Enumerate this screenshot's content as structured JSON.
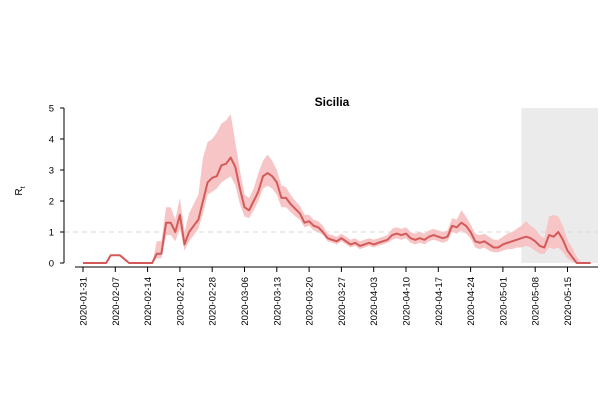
{
  "chart_data": {
    "type": "line",
    "title": "Sicilia",
    "ylabel": "R",
    "ylabel_subscript": "t",
    "xlabel": "",
    "ylim": [
      0,
      5
    ],
    "yticks": [
      0,
      1,
      2,
      3,
      4,
      5
    ],
    "xlim": [
      "2020-01-31",
      "2020-05-27"
    ],
    "xtick_labels": [
      "2020-01-31",
      "2020-02-07",
      "2020-02-14",
      "2020-02-21",
      "2020-02-28",
      "2020-03-06",
      "2020-03-13",
      "2020-03-20",
      "2020-03-27",
      "2020-04-03",
      "2020-04-10",
      "2020-04-17",
      "2020-04-24",
      "2020-05-01",
      "2020-05-08",
      "2020-05-15"
    ],
    "reference_line": 1,
    "shaded_region": [
      "2020-05-05",
      "2020-05-27"
    ],
    "colors": {
      "line": "#d45a5a",
      "band": "#f7c5c5",
      "shade": "#ebebeb",
      "reference": "#d8d8d8"
    },
    "series": [
      {
        "x": [
          "2020-01-31",
          "2020-02-02",
          "2020-02-04",
          "2020-02-05",
          "2020-02-06",
          "2020-02-07",
          "2020-02-08",
          "2020-02-10",
          "2020-02-12",
          "2020-02-14",
          "2020-02-15",
          "2020-02-16",
          "2020-02-17",
          "2020-02-18",
          "2020-02-19",
          "2020-02-20",
          "2020-02-21",
          "2020-02-22",
          "2020-02-23",
          "2020-02-24",
          "2020-02-25",
          "2020-02-26",
          "2020-02-27",
          "2020-02-28",
          "2020-02-29",
          "2020-03-01",
          "2020-03-02",
          "2020-03-03",
          "2020-03-04",
          "2020-03-05",
          "2020-03-06",
          "2020-03-07",
          "2020-03-08",
          "2020-03-09",
          "2020-03-10",
          "2020-03-11",
          "2020-03-12",
          "2020-03-13",
          "2020-03-14",
          "2020-03-15",
          "2020-03-16",
          "2020-03-17",
          "2020-03-18",
          "2020-03-19",
          "2020-03-20",
          "2020-03-21",
          "2020-03-22",
          "2020-03-23",
          "2020-03-24",
          "2020-03-25",
          "2020-03-26",
          "2020-03-27",
          "2020-03-28",
          "2020-03-29",
          "2020-03-30",
          "2020-03-31",
          "2020-04-01",
          "2020-04-02",
          "2020-04-03",
          "2020-04-04",
          "2020-04-05",
          "2020-04-06",
          "2020-04-07",
          "2020-04-08",
          "2020-04-09",
          "2020-04-10",
          "2020-04-11",
          "2020-04-12",
          "2020-04-13",
          "2020-04-14",
          "2020-04-15",
          "2020-04-16",
          "2020-04-17",
          "2020-04-18",
          "2020-04-19",
          "2020-04-20",
          "2020-04-21",
          "2020-04-22",
          "2020-04-23",
          "2020-04-24",
          "2020-04-25",
          "2020-04-26",
          "2020-04-27",
          "2020-04-28",
          "2020-04-29",
          "2020-04-30",
          "2020-05-01",
          "2020-05-02",
          "2020-05-03",
          "2020-05-04",
          "2020-05-05",
          "2020-05-06",
          "2020-05-07",
          "2020-05-08",
          "2020-05-09",
          "2020-05-10",
          "2020-05-11",
          "2020-05-12",
          "2020-05-13",
          "2020-05-14",
          "2020-05-15",
          "2020-05-16",
          "2020-05-17",
          "2020-05-18",
          "2020-05-20"
        ],
        "values": [
          0,
          0,
          0,
          0,
          0.25,
          0.25,
          0.25,
          0,
          0,
          0,
          0,
          0.3,
          0.3,
          1.3,
          1.3,
          1.0,
          1.55,
          0.6,
          1.0,
          1.2,
          1.4,
          2.0,
          2.6,
          2.75,
          2.8,
          3.15,
          3.2,
          3.4,
          3.1,
          2.4,
          1.8,
          1.7,
          2.0,
          2.3,
          2.8,
          2.9,
          2.8,
          2.6,
          2.1,
          2.1,
          1.9,
          1.75,
          1.6,
          1.3,
          1.35,
          1.2,
          1.15,
          1.0,
          0.8,
          0.75,
          0.7,
          0.8,
          0.7,
          0.6,
          0.65,
          0.55,
          0.6,
          0.65,
          0.6,
          0.65,
          0.7,
          0.75,
          0.9,
          0.95,
          0.9,
          0.95,
          0.8,
          0.75,
          0.8,
          0.75,
          0.85,
          0.9,
          0.85,
          0.8,
          0.85,
          1.2,
          1.15,
          1.3,
          1.2,
          1.0,
          0.7,
          0.65,
          0.7,
          0.6,
          0.5,
          0.5,
          0.6,
          0.65,
          0.7,
          0.75,
          0.8,
          0.85,
          0.8,
          0.7,
          0.55,
          0.5,
          0.9,
          0.85,
          1.0,
          0.75,
          0.4,
          0.2,
          0,
          0,
          0
        ],
        "lower": [
          0,
          0,
          0,
          0,
          0.25,
          0.25,
          0.25,
          0,
          0,
          0,
          0,
          0.15,
          0.15,
          0.9,
          0.9,
          0.7,
          1.1,
          0.4,
          0.7,
          0.9,
          1.1,
          1.6,
          2.2,
          2.3,
          2.4,
          2.6,
          2.7,
          2.8,
          2.5,
          1.9,
          1.5,
          1.45,
          1.7,
          2.0,
          2.4,
          2.5,
          2.4,
          2.2,
          1.8,
          1.8,
          1.65,
          1.5,
          1.4,
          1.15,
          1.2,
          1.05,
          1.0,
          0.9,
          0.7,
          0.65,
          0.6,
          0.7,
          0.6,
          0.5,
          0.55,
          0.45,
          0.5,
          0.55,
          0.5,
          0.55,
          0.6,
          0.65,
          0.75,
          0.8,
          0.75,
          0.8,
          0.65,
          0.6,
          0.65,
          0.6,
          0.7,
          0.75,
          0.7,
          0.65,
          0.7,
          1.0,
          0.95,
          1.05,
          0.95,
          0.8,
          0.5,
          0.45,
          0.5,
          0.4,
          0.35,
          0.35,
          0.4,
          0.45,
          0.45,
          0.5,
          0.5,
          0.55,
          0.5,
          0.4,
          0.3,
          0.3,
          0.5,
          0.45,
          0.5,
          0.35,
          0.15,
          0.05,
          0,
          0,
          0
        ],
        "upper": [
          0,
          0,
          0,
          0,
          0.25,
          0.25,
          0.25,
          0,
          0,
          0,
          0,
          0.7,
          0.7,
          1.8,
          1.8,
          1.4,
          2.1,
          1.0,
          1.6,
          1.9,
          2.2,
          3.4,
          3.9,
          4.0,
          4.2,
          4.5,
          4.6,
          4.8,
          3.9,
          3.0,
          2.2,
          2.1,
          2.4,
          2.9,
          3.3,
          3.5,
          3.3,
          3.0,
          2.5,
          2.45,
          2.2,
          2.0,
          1.85,
          1.55,
          1.55,
          1.4,
          1.35,
          1.2,
          0.95,
          0.9,
          0.85,
          0.95,
          0.85,
          0.75,
          0.8,
          0.7,
          0.75,
          0.8,
          0.75,
          0.8,
          0.85,
          0.9,
          1.1,
          1.15,
          1.1,
          1.15,
          1.0,
          0.95,
          1.0,
          0.95,
          1.05,
          1.1,
          1.05,
          1.0,
          1.05,
          1.45,
          1.4,
          1.7,
          1.5,
          1.25,
          0.95,
          0.9,
          0.95,
          0.85,
          0.75,
          0.75,
          0.85,
          0.95,
          1.0,
          1.1,
          1.2,
          1.35,
          1.2,
          1.1,
          0.9,
          0.8,
          1.5,
          1.55,
          1.5,
          1.2,
          0.75,
          0.5,
          0.2,
          0,
          0
        ]
      }
    ]
  }
}
